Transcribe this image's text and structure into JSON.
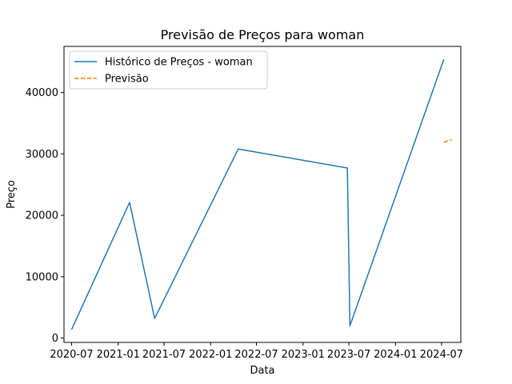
{
  "chart_data": {
    "type": "line",
    "title": "Previsão de Preços para woman",
    "xlabel": "Data",
    "ylabel": "Preço",
    "x_axis_kind": "date",
    "xlim": [
      "2020-06-01",
      "2024-09-15"
    ],
    "ylim": [
      -700,
      47500
    ],
    "x_ticks": [
      {
        "value": "2020-07-01",
        "label": "2020-07"
      },
      {
        "value": "2021-01-01",
        "label": "2021-01"
      },
      {
        "value": "2021-07-01",
        "label": "2021-07"
      },
      {
        "value": "2022-01-01",
        "label": "2022-01"
      },
      {
        "value": "2022-07-01",
        "label": "2022-07"
      },
      {
        "value": "2023-01-01",
        "label": "2023-01"
      },
      {
        "value": "2023-07-01",
        "label": "2023-07"
      },
      {
        "value": "2024-01-01",
        "label": "2024-01"
      },
      {
        "value": "2024-07-01",
        "label": "2024-07"
      }
    ],
    "y_ticks": [
      {
        "value": 0,
        "label": "0"
      },
      {
        "value": 10000,
        "label": "10000"
      },
      {
        "value": 20000,
        "label": "20000"
      },
      {
        "value": 30000,
        "label": "30000"
      },
      {
        "value": 40000,
        "label": "40000"
      }
    ],
    "grid": false,
    "legend_position": "top-left",
    "series": [
      {
        "name": "Histórico de Preços - woman",
        "color": "#1f77b4",
        "style": "solid",
        "x": [
          "2020-07-01",
          "2021-02-15",
          "2021-05-25",
          "2022-04-20",
          "2023-06-25",
          "2023-07-05",
          "2024-07-10"
        ],
        "y": [
          1400,
          22100,
          3200,
          30800,
          27700,
          2000,
          45400
        ]
      },
      {
        "name": "Previsão",
        "color": "#ff7f0e",
        "style": "dashed",
        "x": [
          "2024-07-10",
          "2024-08-10"
        ],
        "y": [
          31900,
          32300
        ]
      }
    ]
  }
}
